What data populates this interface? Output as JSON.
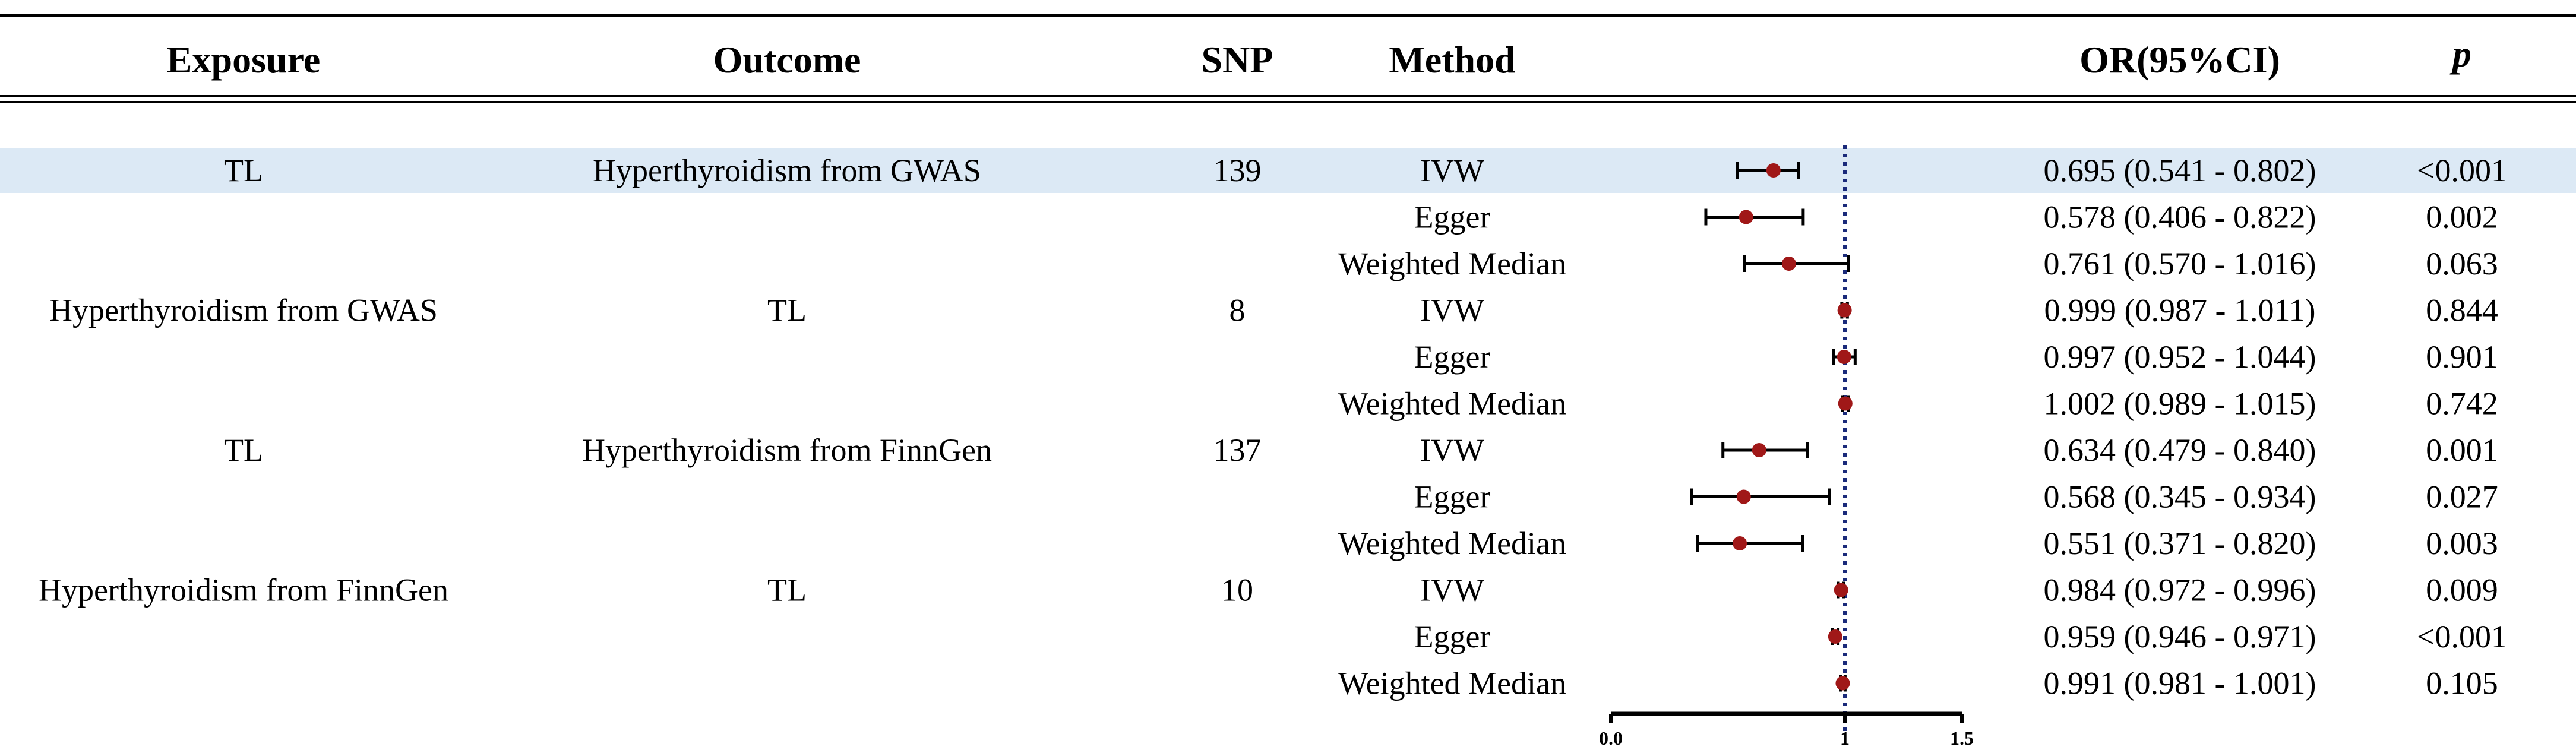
{
  "header": {
    "exposure": "Exposure",
    "outcome": "Outcome",
    "snp": "SNP",
    "method": "Method",
    "or": "OR(95%CI)",
    "p": "p"
  },
  "rows": [
    {
      "exposure": "TL",
      "outcome": "Hyperthyroidism from GWAS",
      "snp": "139",
      "method": "IVW",
      "or_text": "0.695 (0.541 - 0.802)",
      "p": "<0.001"
    },
    {
      "exposure": "",
      "outcome": "",
      "snp": "",
      "method": "Egger",
      "or_text": "0.578 (0.406 - 0.822)",
      "p": "0.002"
    },
    {
      "exposure": "",
      "outcome": "",
      "snp": "",
      "method": "Weighted Median",
      "or_text": "0.761 (0.570 - 1.016)",
      "p": "0.063"
    },
    {
      "exposure": "Hyperthyroidism from GWAS",
      "outcome": "TL",
      "snp": "8",
      "method": "IVW",
      "or_text": "0.999 (0.987 - 1.011)",
      "p": "0.844"
    },
    {
      "exposure": "",
      "outcome": "",
      "snp": "",
      "method": "Egger",
      "or_text": "0.997 (0.952 - 1.044)",
      "p": "0.901"
    },
    {
      "exposure": "",
      "outcome": "",
      "snp": "",
      "method": "Weighted Median",
      "or_text": "1.002 (0.989 - 1.015)",
      "p": "0.742"
    },
    {
      "exposure": "TL",
      "outcome": "Hyperthyroidism from FinnGen",
      "snp": "137",
      "method": "IVW",
      "or_text": "0.634 (0.479 - 0.840)",
      "p": "0.001"
    },
    {
      "exposure": "",
      "outcome": "",
      "snp": "",
      "method": "Egger",
      "or_text": "0.568 (0.345 - 0.934)",
      "p": "0.027"
    },
    {
      "exposure": "",
      "outcome": "",
      "snp": "",
      "method": "Weighted Median",
      "or_text": "0.551 (0.371 - 0.820)",
      "p": "0.003"
    },
    {
      "exposure": "Hyperthyroidism from FinnGen",
      "outcome": "TL",
      "snp": "10",
      "method": "IVW",
      "or_text": "0.984 (0.972 - 0.996)",
      "p": "0.009"
    },
    {
      "exposure": "",
      "outcome": "",
      "snp": "",
      "method": "Egger",
      "or_text": "0.959 (0.946 - 0.971)",
      "p": "<0.001"
    },
    {
      "exposure": "",
      "outcome": "",
      "snp": "",
      "method": "Weighted Median",
      "or_text": "0.991 (0.981 - 1.001)",
      "p": "0.105"
    }
  ],
  "chart_data": {
    "type": "scatter",
    "subtype": "forest",
    "x_ticks": [
      "0.0",
      "1",
      "1.5"
    ],
    "reference_line": 1,
    "xlim": [
      0,
      1.5
    ],
    "points": [
      {
        "or": 0.695,
        "lower": 0.541,
        "upper": 0.802
      },
      {
        "or": 0.578,
        "lower": 0.406,
        "upper": 0.822
      },
      {
        "or": 0.761,
        "lower": 0.57,
        "upper": 1.016
      },
      {
        "or": 0.999,
        "lower": 0.987,
        "upper": 1.011
      },
      {
        "or": 0.997,
        "lower": 0.952,
        "upper": 1.044
      },
      {
        "or": 1.002,
        "lower": 0.989,
        "upper": 1.015
      },
      {
        "or": 0.634,
        "lower": 0.479,
        "upper": 0.84
      },
      {
        "or": 0.568,
        "lower": 0.345,
        "upper": 0.934
      },
      {
        "or": 0.551,
        "lower": 0.371,
        "upper": 0.82
      },
      {
        "or": 0.984,
        "lower": 0.972,
        "upper": 0.996
      },
      {
        "or": 0.959,
        "lower": 0.946,
        "upper": 0.971
      },
      {
        "or": 0.991,
        "lower": 0.981,
        "upper": 1.001
      }
    ],
    "point_color": "#a01818",
    "reference_line_color": "#1a2a7a"
  },
  "colors": {
    "band": "#dce9f5",
    "text": "#000000"
  }
}
